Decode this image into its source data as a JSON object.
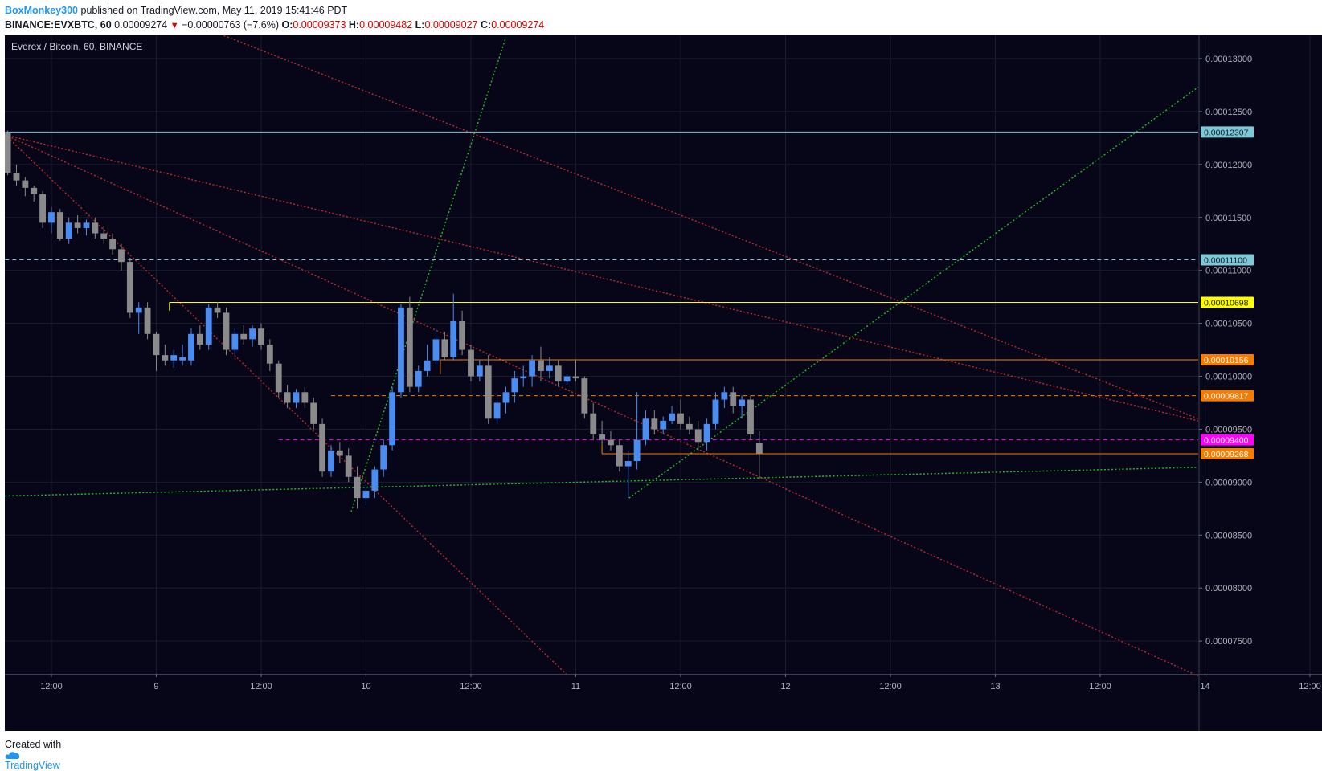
{
  "header": {
    "user": "BoxMonkey300",
    "published": "published on TradingView.com, May 11, 2019 15:41:46 PDT",
    "symbol": "BINANCE:EVXBTC, 60",
    "last": "0.00009274",
    "change": "−0.00000763 (−7.6%)",
    "o_label": "O:",
    "o_value": "0.00009373",
    "h_label": "H:",
    "h_value": "0.00009482",
    "l_label": "L:",
    "l_value": "0.00009027",
    "c_label": "C:",
    "c_value": "0.00009274"
  },
  "footer": {
    "created_with": "Created with",
    "brand": "TradingView"
  },
  "colors": {
    "background": "#070518",
    "grid": "#1a1d2e",
    "up": "#4a8cf0",
    "down": "#8a8a8a",
    "red_line": "#c62828",
    "green_line": "#21c021",
    "cyan": "#7fc8d8",
    "yellow": "#ffff00",
    "orange": "#f57c00",
    "magenta": "#ff00ff"
  },
  "chart_data": {
    "type": "candlestick",
    "title": "Everex / Bitcoin, 60, BINANCE",
    "x_tick_labels": [
      "12:00",
      "9",
      "12:00",
      "10",
      "12:00",
      "11",
      "12:00",
      "12",
      "12:00",
      "13",
      "12:00",
      "14",
      "12:00"
    ],
    "x_range_hours": [
      -17.33,
      119.22
    ],
    "ylim": [
      7.19e-05,
      0.0001322
    ],
    "y_ticks": [
      7.5e-05,
      8e-05,
      8.5e-05,
      9e-05,
      9.5e-05,
      0.0001,
      0.000105,
      0.00011,
      0.000115,
      0.00012,
      0.000125,
      0.00013
    ],
    "candles": [
      [
        -17,
        0.000123,
        0.0001232,
        0.000119,
        0.0001192
      ],
      [
        -16,
        0.0001192,
        0.00012,
        0.000118,
        0.0001185
      ],
      [
        -15,
        0.0001185,
        0.0001188,
        0.000117,
        0.0001178
      ],
      [
        -14,
        0.0001178,
        0.000118,
        0.0001165,
        0.0001172
      ],
      [
        -13,
        0.0001172,
        0.0001175,
        0.000114,
        0.0001145
      ],
      [
        -12,
        0.0001145,
        0.000116,
        0.0001135,
        0.0001155
      ],
      [
        -11,
        0.0001155,
        0.0001158,
        0.0001128,
        0.000113
      ],
      [
        -10,
        0.000113,
        0.000115,
        0.0001125,
        0.0001145
      ],
      [
        -9,
        0.0001145,
        0.0001152,
        0.0001135,
        0.000114
      ],
      [
        -8,
        0.000114,
        0.0001148,
        0.0001133,
        0.0001145
      ],
      [
        -7,
        0.0001145,
        0.000115,
        0.000113,
        0.0001135
      ],
      [
        -6,
        0.0001135,
        0.0001142,
        0.0001125,
        0.000113
      ],
      [
        -5,
        0.000113,
        0.0001135,
        0.0001115,
        0.000112
      ],
      [
        -4,
        0.000112,
        0.0001125,
        0.00011,
        0.0001108
      ],
      [
        -3,
        0.0001108,
        0.0001112,
        0.0001055,
        0.000106
      ],
      [
        -2,
        0.000106,
        0.000107,
        0.000104,
        0.0001065
      ],
      [
        -1,
        0.0001065,
        0.000107,
        0.0001035,
        0.000104
      ],
      [
        0,
        0.000104,
        0.0001042,
        0.0001005,
        0.000102
      ],
      [
        1,
        0.000102,
        0.000103,
        0.000101,
        0.0001015
      ],
      [
        2,
        0.0001015,
        0.0001025,
        0.0001008,
        0.000102
      ],
      [
        3,
        0.0001015,
        0.000103,
        0.000101,
        0.0001018
      ],
      [
        4,
        0.0001015,
        0.0001045,
        0.000101,
        0.000104
      ],
      [
        5,
        0.000104,
        0.0001048,
        0.0001025,
        0.000103
      ],
      [
        6,
        0.000103,
        0.0001068,
        0.0001025,
        0.0001065
      ],
      [
        7,
        0.0001065,
        0.000107,
        0.0001055,
        0.000106
      ],
      [
        8,
        0.000106,
        0.0001065,
        0.000102,
        0.0001025
      ],
      [
        9,
        0.0001025,
        0.0001045,
        0.000102,
        0.000104
      ],
      [
        10,
        0.000104,
        0.0001048,
        0.000103,
        0.0001035
      ],
      [
        11,
        0.0001035,
        0.0001048,
        0.0001028,
        0.0001045
      ],
      [
        12,
        0.0001045,
        0.000105,
        0.0001025,
        0.000103
      ],
      [
        13,
        0.000103,
        0.0001035,
        0.0001005,
        0.0001012
      ],
      [
        14,
        0.0001012,
        0.0001015,
        9.8e-05,
        9.85e-05
      ],
      [
        15,
        9.85e-05,
        9.92e-05,
        9.7e-05,
        9.75e-05
      ],
      [
        16,
        9.75e-05,
        9.88e-05,
        9.7e-05,
        9.85e-05
      ],
      [
        17,
        9.85e-05,
        9.9e-05,
        9.7e-05,
        9.75e-05
      ],
      [
        18,
        9.75e-05,
        9.8e-05,
        9.5e-05,
        9.55e-05
      ],
      [
        19,
        9.55e-05,
        9.6e-05,
        9.05e-05,
        9.1e-05
      ],
      [
        20,
        9.1e-05,
        9.35e-05,
        9.05e-05,
        9.3e-05
      ],
      [
        21,
        9.3e-05,
        9.38e-05,
        9.18e-05,
        9.25e-05
      ],
      [
        22,
        9.25e-05,
        9.32e-05,
        9e-05,
        9.05e-05
      ],
      [
        23,
        9.05e-05,
        9.15e-05,
        8.75e-05,
        8.85e-05
      ],
      [
        24,
        8.85e-05,
        8.98e-05,
        8.78e-05,
        8.92e-05
      ],
      [
        25,
        8.92e-05,
        9.15e-05,
        8.85e-05,
        9.12e-05
      ],
      [
        26,
        9.12e-05,
        9.4e-05,
        9.05e-05,
        9.35e-05
      ],
      [
        27,
        9.35e-05,
        9.9e-05,
        9.3e-05,
        9.85e-05
      ],
      [
        28,
        9.85e-05,
        0.0001068,
        9.8e-05,
        0.0001065
      ],
      [
        29,
        0.0001065,
        0.0001075,
        9.85e-05,
        9.9e-05
      ],
      [
        30,
        9.9e-05,
        0.000101,
        9.85e-05,
        0.0001005
      ],
      [
        31,
        0.0001005,
        0.000103,
        0.0001,
        0.0001015
      ],
      [
        32,
        0.0001015,
        0.0001045,
        0.000101,
        0.0001035
      ],
      [
        33,
        0.0001035,
        0.0001042,
        0.0001015,
        0.0001018
      ],
      [
        34,
        0.0001018,
        0.0001078,
        0.0001015,
        0.0001052
      ],
      [
        35,
        0.0001052,
        0.0001062,
        0.000102,
        0.0001025
      ],
      [
        36,
        0.0001025,
        0.000103,
        9.95e-05,
        0.0001
      ],
      [
        37,
        0.0001,
        0.0001015,
        9.95e-05,
        0.000101
      ],
      [
        38,
        0.000101,
        0.000102,
        9.55e-05,
        9.6e-05
      ],
      [
        39,
        9.6e-05,
        9.8e-05,
        9.55e-05,
        9.75e-05
      ],
      [
        40,
        9.75e-05,
        9.9e-05,
        9.65e-05,
        9.85e-05
      ],
      [
        41,
        9.85e-05,
        0.0001005,
        9.75e-05,
        9.98e-05
      ],
      [
        42,
        9.98e-05,
        0.000101,
        9.9e-05,
        0.0001
      ],
      [
        43,
        0.0001,
        0.000102,
        9.9e-05,
        0.0001015
      ],
      [
        44,
        0.0001015,
        0.0001028,
        9.95e-05,
        0.0001005
      ],
      [
        45,
        0.0001005,
        0.0001018,
        9.98e-05,
        0.000101
      ],
      [
        46,
        0.000101,
        0.0001015,
        9.9e-05,
        9.95e-05
      ],
      [
        47,
        9.95e-05,
        0.0001002,
        9.92e-05,
        0.0001
      ],
      [
        48,
        0.0001,
        0.0001015,
        9.95e-05,
        9.98e-05
      ],
      [
        49,
        9.98e-05,
        0.0001,
        9.6e-05,
        9.65e-05
      ],
      [
        50,
        9.65e-05,
        9.75e-05,
        9.4e-05,
        9.45e-05
      ],
      [
        51,
        9.45e-05,
        9.58e-05,
        9.35e-05,
        9.4e-05
      ],
      [
        52,
        9.4e-05,
        9.48e-05,
        9.3e-05,
        9.35e-05
      ],
      [
        53,
        9.35e-05,
        9.4e-05,
        9.1e-05,
        9.15e-05
      ],
      [
        54,
        9.15e-05,
        9.3e-05,
        8.85e-05,
        9.2e-05
      ],
      [
        55,
        9.2e-05,
        9.85e-05,
        9.12e-05,
        9.4e-05
      ],
      [
        56,
        9.4e-05,
        9.68e-05,
        9.35e-05,
        9.6e-05
      ],
      [
        57,
        9.6e-05,
        9.68e-05,
        9.45e-05,
        9.5e-05
      ],
      [
        58,
        9.5e-05,
        9.62e-05,
        9.45e-05,
        9.58e-05
      ],
      [
        59,
        9.58e-05,
        9.72e-05,
        9.55e-05,
        9.65e-05
      ],
      [
        60,
        9.65e-05,
        9.78e-05,
        9.5e-05,
        9.55e-05
      ],
      [
        61,
        9.55e-05,
        9.62e-05,
        9.45e-05,
        9.5e-05
      ],
      [
        62,
        9.5e-05,
        9.58e-05,
        9.3e-05,
        9.38e-05
      ],
      [
        63,
        9.38e-05,
        9.6e-05,
        9.3e-05,
        9.55e-05
      ],
      [
        64,
        9.55e-05,
        9.85e-05,
        9.5e-05,
        9.78e-05
      ],
      [
        65,
        9.78e-05,
        9.9e-05,
        9.7e-05,
        9.85e-05
      ],
      [
        66,
        9.85e-05,
        9.9e-05,
        9.65e-05,
        9.72e-05
      ],
      [
        67,
        9.72e-05,
        9.82e-05,
        9.6e-05,
        9.78e-05
      ],
      [
        68,
        9.78e-05,
        9.82e-05,
        9.4e-05,
        9.45e-05
      ],
      [
        69,
        9.37e-05,
        9.48e-05,
        9.03e-05,
        9.27e-05
      ]
    ],
    "horizontal_levels": [
      {
        "label": "0.00012307",
        "color": "#7fc8d8",
        "text_color": "#10202a"
      },
      {
        "label": "0.00011100",
        "color": "#7fc8d8",
        "text_color": "#10202a"
      },
      {
        "label": "0.00010698",
        "color": "#ffff00",
        "text_color": "#1a1a00"
      },
      {
        "label": "0.00010156",
        "color": "#f57c00",
        "text_color": "#ffffff"
      },
      {
        "label": "0.00009817",
        "color": "#f57c00",
        "text_color": "#ffffff"
      },
      {
        "label": "0.00009400",
        "color": "#ff00ff",
        "text_color": "#ffffff"
      },
      {
        "label": "0.00009268",
        "color": "#f57c00",
        "text_color": "#ffffff"
      }
    ]
  }
}
